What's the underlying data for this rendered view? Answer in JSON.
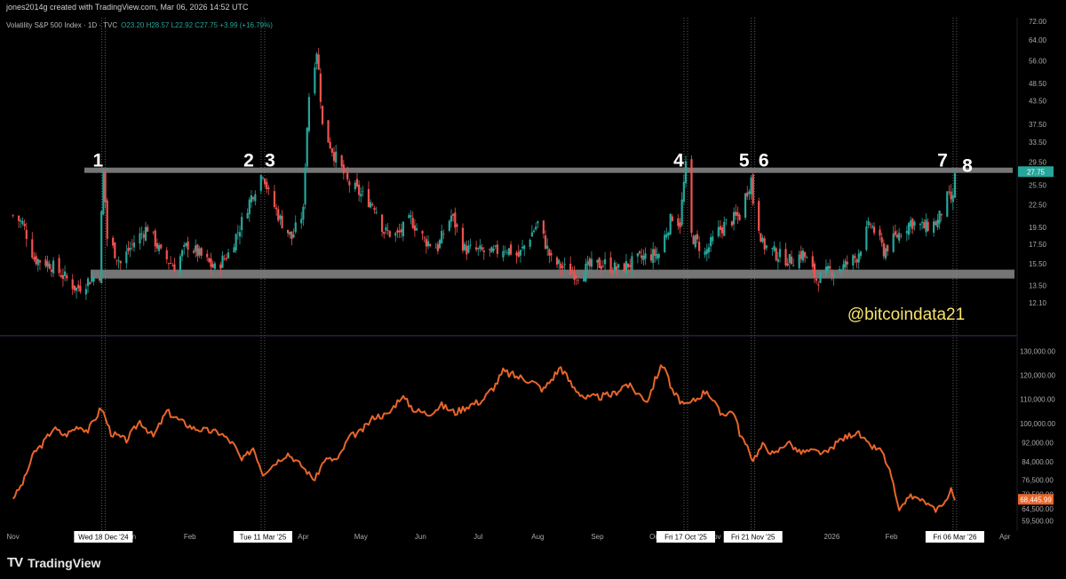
{
  "header": {
    "caption": "jones2014g created with TradingView.com, Mar 06, 2026 14:52 UTC",
    "symbol": "Volatility S&P 500 Index · 1D · TVC",
    "ohlc": "O23.20 H28.57 L22.92 C27.75 +3.99 (+16.79%)"
  },
  "footer": {
    "brand": "TradingView",
    "brand_icon": "tradingview-logo-icon"
  },
  "watermark": "@bitcoindata21",
  "colors": {
    "up": "#26a69a",
    "down": "#ef5350",
    "btc_line": "#e8652a",
    "level": "#8a8a8a",
    "vix_tag": "#26a69a",
    "btc_tag": "#e8652a"
  },
  "chart_data": [
    {
      "type": "candlestick",
      "title": "Volatility S&P 500 Index · 1D · TVC",
      "y_scale": "log",
      "ylim": [
        10.5,
        74
      ],
      "y_ticks": [
        "72.00",
        "64.00",
        "56.00",
        "48.50",
        "43.50",
        "37.50",
        "33.50",
        "29.50",
        "25.50",
        "22.50",
        "19.50",
        "17.50",
        "15.50",
        "13.50",
        "12.10"
      ],
      "last_value": "27.75",
      "levels": [
        {
          "name": "resistance",
          "value": 28.0
        },
        {
          "name": "support",
          "value": 14.5
        }
      ],
      "markers": [
        {
          "label": "1",
          "date": "Wed 18 Dec '24"
        },
        {
          "label": "2",
          "date": "Tue 11 Mar '25"
        },
        {
          "label": "3",
          "date": "Tue 11 Mar '25"
        },
        {
          "label": "4",
          "date": "Fri 17 Oct '25"
        },
        {
          "label": "5",
          "date": "Fri 21 Nov '25"
        },
        {
          "label": "6",
          "date": "Fri 21 Nov '25"
        },
        {
          "label": "7",
          "date": "Fri 06 Mar '26"
        },
        {
          "label": "8",
          "date": "Fri 06 Mar '26"
        }
      ],
      "series_path": [
        [
          "2024-11-01",
          21
        ],
        [
          "2024-11-06",
          20
        ],
        [
          "2024-11-12",
          16
        ],
        [
          "2024-11-20",
          15.5
        ],
        [
          "2024-11-28",
          14.2
        ],
        [
          "2024-12-04",
          13.2
        ],
        [
          "2024-12-10",
          13.9
        ],
        [
          "2024-12-16",
          14.5
        ],
        [
          "2024-12-18",
          27.6
        ],
        [
          "2024-12-20",
          18.2
        ],
        [
          "2024-12-27",
          15.5
        ],
        [
          "2025-01-03",
          17.8
        ],
        [
          "2025-01-10",
          19.5
        ],
        [
          "2025-01-17",
          16.5
        ],
        [
          "2025-01-24",
          15.2
        ],
        [
          "2025-01-31",
          17.5
        ],
        [
          "2025-02-07",
          16.2
        ],
        [
          "2025-02-14",
          15
        ],
        [
          "2025-02-21",
          16.5
        ],
        [
          "2025-02-27",
          19.5
        ],
        [
          "2025-03-04",
          23
        ],
        [
          "2025-03-11",
          27.8
        ],
        [
          "2025-03-14",
          24
        ],
        [
          "2025-03-20",
          20.5
        ],
        [
          "2025-03-26",
          18.2
        ],
        [
          "2025-04-01",
          21.5
        ],
        [
          "2025-04-04",
          45
        ],
        [
          "2025-04-08",
          60
        ],
        [
          "2025-04-11",
          37
        ],
        [
          "2025-04-17",
          31
        ],
        [
          "2025-04-24",
          26
        ],
        [
          "2025-05-01",
          24
        ],
        [
          "2025-05-08",
          22.5
        ],
        [
          "2025-05-13",
          19
        ],
        [
          "2025-05-20",
          18.5
        ],
        [
          "2025-05-27",
          20.5
        ],
        [
          "2025-06-03",
          18
        ],
        [
          "2025-06-10",
          17.2
        ],
        [
          "2025-06-17",
          21
        ],
        [
          "2025-06-24",
          17
        ],
        [
          "2025-07-01",
          16.8
        ],
        [
          "2025-07-08",
          16.5
        ],
        [
          "2025-07-15",
          17.2
        ],
        [
          "2025-07-22",
          16.2
        ],
        [
          "2025-08-01",
          20
        ],
        [
          "2025-08-08",
          15.8
        ],
        [
          "2025-08-15",
          15
        ],
        [
          "2025-08-22",
          14.5
        ],
        [
          "2025-08-29",
          15.3
        ],
        [
          "2025-09-05",
          15.5
        ],
        [
          "2025-09-12",
          14.9
        ],
        [
          "2025-09-19",
          15.6
        ],
        [
          "2025-09-26",
          16.2
        ],
        [
          "2025-10-03",
          16.5
        ],
        [
          "2025-10-10",
          21
        ],
        [
          "2025-10-14",
          20
        ],
        [
          "2025-10-17",
          28.5
        ],
        [
          "2025-10-20",
          18.5
        ],
        [
          "2025-10-27",
          16.5
        ],
        [
          "2025-11-03",
          19
        ],
        [
          "2025-11-07",
          20
        ],
        [
          "2025-11-14",
          21
        ],
        [
          "2025-11-20",
          26.5
        ],
        [
          "2025-11-21",
          23
        ],
        [
          "2025-11-26",
          17.5
        ],
        [
          "2025-12-03",
          16.5
        ],
        [
          "2025-12-10",
          15.8
        ],
        [
          "2025-12-17",
          16.5
        ],
        [
          "2025-12-24",
          14
        ],
        [
          "2025-12-31",
          14.8
        ],
        [
          "2026-01-07",
          15.2
        ],
        [
          "2026-01-14",
          16.2
        ],
        [
          "2026-01-21",
          20
        ],
        [
          "2026-01-28",
          16.8
        ],
        [
          "2026-02-04",
          18.5
        ],
        [
          "2026-02-11",
          20.2
        ],
        [
          "2026-02-18",
          19.5
        ],
        [
          "2026-02-25",
          20.2
        ],
        [
          "2026-03-02",
          23.5
        ],
        [
          "2026-03-05",
          23.2
        ],
        [
          "2026-03-06",
          27.75
        ]
      ]
    },
    {
      "type": "line",
      "y_ticks": [
        "130,000.00",
        "120,000.00",
        "110,000.00",
        "100,000.00",
        "92,000.00",
        "84,000.00",
        "76,500.00",
        "70,500.00",
        "64,500.00",
        "59,500.00"
      ],
      "last_value": "68,445.99",
      "series_path": [
        [
          "2024-11-01",
          69000
        ],
        [
          "2024-11-06",
          75000
        ],
        [
          "2024-11-12",
          88000
        ],
        [
          "2024-11-16",
          91000
        ],
        [
          "2024-11-22",
          98000
        ],
        [
          "2024-11-28",
          95000
        ],
        [
          "2024-12-05",
          99000
        ],
        [
          "2024-12-10",
          97000
        ],
        [
          "2024-12-17",
          106500
        ],
        [
          "2024-12-22",
          96000
        ],
        [
          "2024-12-30",
          93000
        ],
        [
          "2025-01-06",
          101000
        ],
        [
          "2025-01-13",
          94500
        ],
        [
          "2025-01-20",
          105000
        ],
        [
          "2025-01-27",
          101000
        ],
        [
          "2025-02-03",
          98000
        ],
        [
          "2025-02-10",
          97000
        ],
        [
          "2025-02-17",
          96000
        ],
        [
          "2025-02-24",
          91000
        ],
        [
          "2025-02-28",
          84500
        ],
        [
          "2025-03-06",
          90000
        ],
        [
          "2025-03-11",
          79000
        ],
        [
          "2025-03-18",
          84000
        ],
        [
          "2025-03-24",
          87500
        ],
        [
          "2025-03-31",
          82500
        ],
        [
          "2025-04-07",
          76500
        ],
        [
          "2025-04-12",
          85000
        ],
        [
          "2025-04-19",
          85000
        ],
        [
          "2025-04-25",
          94500
        ],
        [
          "2025-05-01",
          96500
        ],
        [
          "2025-05-08",
          103000
        ],
        [
          "2025-05-15",
          103500
        ],
        [
          "2025-05-22",
          111500
        ],
        [
          "2025-05-29",
          105500
        ],
        [
          "2025-06-05",
          104000
        ],
        [
          "2025-06-12",
          107500
        ],
        [
          "2025-06-19",
          104500
        ],
        [
          "2025-06-26",
          107500
        ],
        [
          "2025-07-03",
          109500
        ],
        [
          "2025-07-10",
          116000
        ],
        [
          "2025-07-14",
          121500
        ],
        [
          "2025-07-21",
          119500
        ],
        [
          "2025-07-28",
          118000
        ],
        [
          "2025-08-04",
          114000
        ],
        [
          "2025-08-13",
          123500
        ],
        [
          "2025-08-19",
          115500
        ],
        [
          "2025-08-26",
          110500
        ],
        [
          "2025-09-02",
          111000
        ],
        [
          "2025-09-09",
          112000
        ],
        [
          "2025-09-16",
          116500
        ],
        [
          "2025-09-22",
          112500
        ],
        [
          "2025-09-27",
          109500
        ],
        [
          "2025-10-03",
          122000
        ],
        [
          "2025-10-06",
          124500
        ],
        [
          "2025-10-10",
          113000
        ],
        [
          "2025-10-17",
          107000
        ],
        [
          "2025-10-23",
          110500
        ],
        [
          "2025-10-28",
          114000
        ],
        [
          "2025-11-04",
          104000
        ],
        [
          "2025-11-11",
          105000
        ],
        [
          "2025-11-14",
          96000
        ],
        [
          "2025-11-21",
          85000
        ],
        [
          "2025-11-26",
          91000
        ],
        [
          "2025-12-02",
          87000
        ],
        [
          "2025-12-09",
          92500
        ],
        [
          "2025-12-15",
          88000
        ],
        [
          "2025-12-22",
          88500
        ],
        [
          "2025-12-29",
          87500
        ],
        [
          "2026-01-05",
          93000
        ],
        [
          "2026-01-14",
          96500
        ],
        [
          "2026-01-20",
          91000
        ],
        [
          "2026-01-27",
          88500
        ],
        [
          "2026-02-01",
          78000
        ],
        [
          "2026-02-05",
          63000
        ],
        [
          "2026-02-10",
          70000
        ],
        [
          "2026-02-17",
          68000
        ],
        [
          "2026-02-24",
          64000
        ],
        [
          "2026-03-02",
          68500
        ],
        [
          "2026-03-04",
          72500
        ],
        [
          "2026-03-06",
          68446
        ]
      ]
    }
  ],
  "x_axis": {
    "labels": [
      {
        "text": "Nov",
        "date": "2024-11-01"
      },
      {
        "text": "Jan",
        "date": "2025-01-01"
      },
      {
        "text": "Feb",
        "date": "2025-02-01"
      },
      {
        "text": "Apr",
        "date": "2025-04-01"
      },
      {
        "text": "May",
        "date": "2025-05-01"
      },
      {
        "text": "Jun",
        "date": "2025-06-01"
      },
      {
        "text": "Jul",
        "date": "2025-07-01"
      },
      {
        "text": "Aug",
        "date": "2025-08-01"
      },
      {
        "text": "Sep",
        "date": "2025-09-01"
      },
      {
        "text": "Oct",
        "date": "2025-10-01"
      },
      {
        "text": "Nov",
        "date": "2025-11-01"
      },
      {
        "text": "2026",
        "date": "2026-01-01"
      },
      {
        "text": "Feb",
        "date": "2026-02-01"
      },
      {
        "text": "Apr",
        "date": "2026-04-01"
      }
    ],
    "highlighted": [
      {
        "text": "Wed 18 Dec '24",
        "date": "2024-12-18"
      },
      {
        "text": "Tue 11 Mar '25",
        "date": "2025-03-11"
      },
      {
        "text": "Fri 17 Oct '25",
        "date": "2025-10-17"
      },
      {
        "text": "Fri 21 Nov '25",
        "date": "2025-11-21"
      },
      {
        "text": "Fri 06 Mar '26",
        "date": "2026-03-06"
      }
    ]
  }
}
